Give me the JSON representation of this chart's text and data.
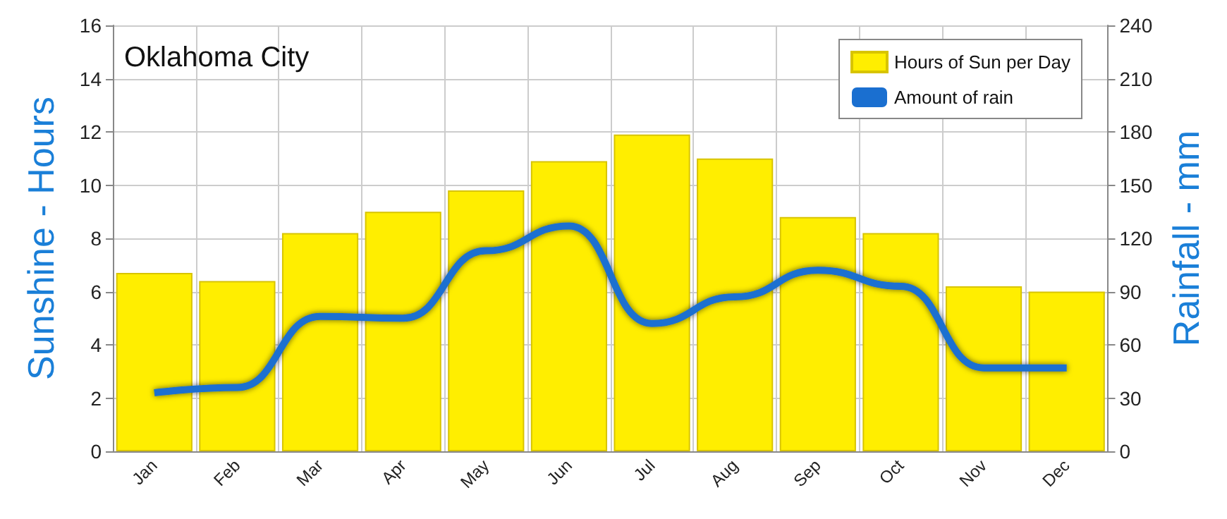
{
  "chart_data": {
    "type": "bar",
    "title": "Oklahoma City",
    "categories": [
      "Jan",
      "Feb",
      "Mar",
      "Apr",
      "May",
      "Jun",
      "Jul",
      "Aug",
      "Sep",
      "Oct",
      "Nov",
      "Dec"
    ],
    "series": [
      {
        "name": "Hours of Sun per Day",
        "color": "#ffee00",
        "values": [
          6.7,
          6.4,
          8.2,
          9.0,
          9.8,
          10.9,
          11.9,
          11.0,
          8.8,
          8.2,
          6.2,
          6.0
        ]
      },
      {
        "name": "Amount of rain",
        "type": "line",
        "axis": "y2",
        "color": "#1a6fd0",
        "values": [
          33,
          36,
          76,
          75,
          113,
          127,
          72,
          87,
          102,
          93,
          47,
          47
        ]
      }
    ],
    "ylabel": "Sunshine - Hours",
    "y2label": "Rainfall - mm",
    "ylim": [
      0,
      16
    ],
    "yticks": [
      0,
      2,
      4,
      6,
      8,
      10,
      12,
      14,
      16
    ],
    "y2lim": [
      0,
      240
    ],
    "y2ticks": [
      0,
      30,
      60,
      90,
      120,
      150,
      180,
      210,
      240
    ],
    "grid": true,
    "legend": "top right",
    "marker": "none",
    "line_style": "solid"
  }
}
